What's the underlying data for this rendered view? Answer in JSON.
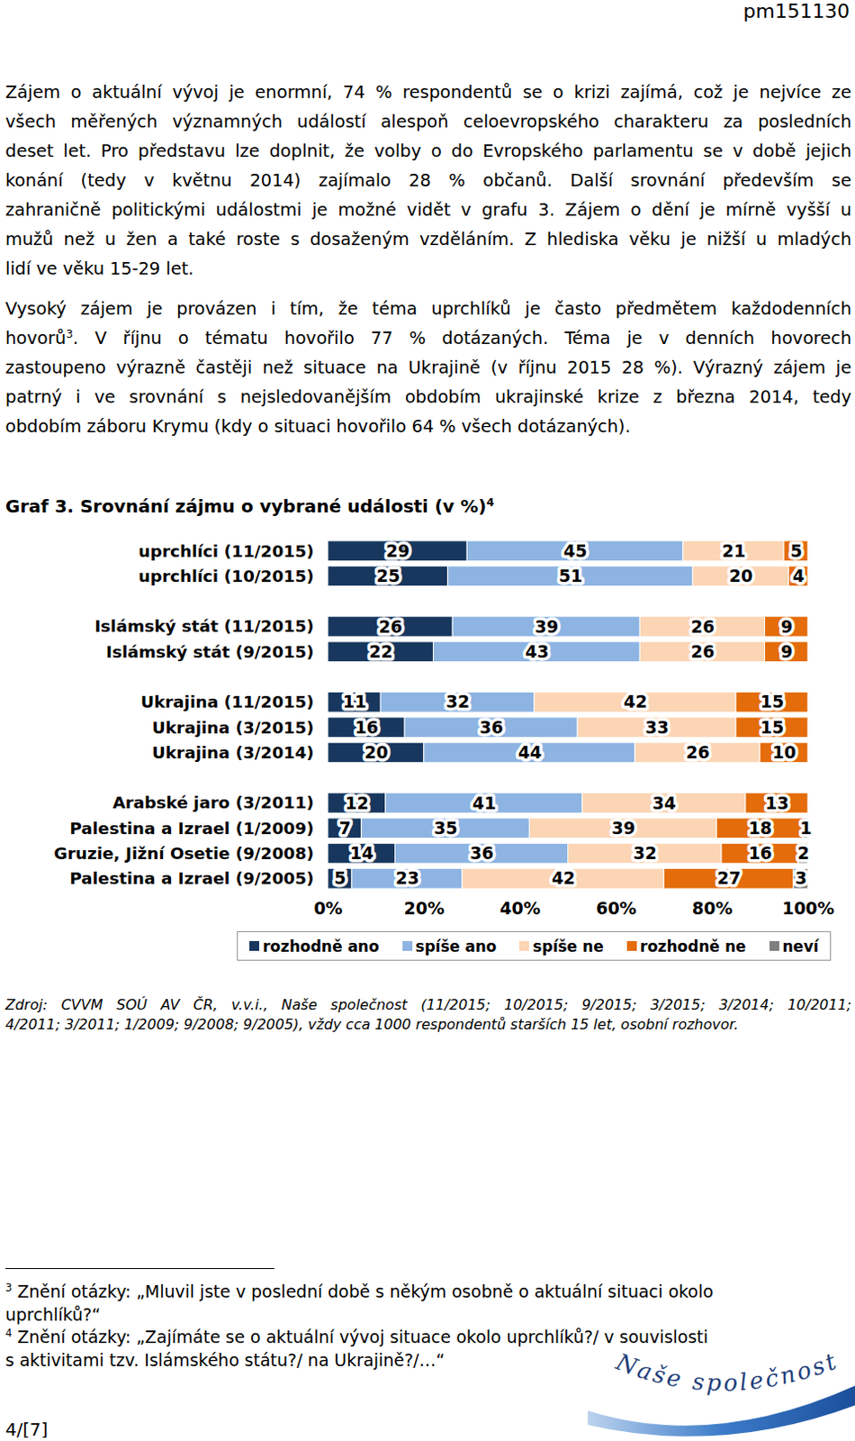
{
  "header": "pm151130",
  "paragraphs": [
    [
      "Zájem o aktuální vývoj je enormní, 74 % respondentů se o krizi zajímá, což je nejvíce ze",
      "všech měřených významných událostí alespoň celoevropského charakteru za posledních",
      "deset let. Pro představu lze doplnit, že volby o do Evropského parlamentu se v době jejich",
      "konání (tedy v květnu 2014) zajímalo 28 % občanů. Další srovnání především se",
      "zahraničně politickými událostmi je možné vidět v grafu 3. Zájem o dění je mírně vyšší u",
      "mužů než u žen a také roste s dosaženým vzděláním. Z hlediska věku je nižší u mladých",
      "lidí ve věku 15-29 let."
    ],
    [
      "Vysoký zájem je provázen i tím, že téma uprchlíků je často předmětem každodenních",
      [
        "hovorů",
        {
          "sup": "3"
        },
        ". V říjnu o tématu hovořilo 77 % dotázaných. Téma je v denních hovorech"
      ],
      "zastoupeno výrazně častěji než situace na Ukrajině (v říjnu 2015 28 %). Výrazný zájem je",
      "patrný i ve srovnání s nejsledovanějším obdobím ukrajinské krize z března 2014, tedy",
      "obdobím záboru Krymu (kdy o situaci hovořilo 64 % všech dotázaných)."
    ]
  ],
  "chart_data": {
    "type": "bar",
    "orientation": "horizontal",
    "stacked": true,
    "data_labels": true,
    "grid": false,
    "legend": "bottom",
    "title": "Graf 3. Srovnání zájmu o vybrané události (v %)",
    "title_footnote": "4",
    "categories": [
      "uprchlíci (11/2015)",
      "uprchlíci (10/2015)",
      "Islámský stát (11/2015)",
      "Islámský stát (9/2015)",
      "Ukrajina (11/2015)",
      "Ukrajina (3/2015)",
      "Ukrajina (3/2014)",
      "Arabské jaro (3/2011)",
      "Palestina a Izrael (1/2009)",
      "Gruzie, Jižní Osetie (9/2008)",
      "Palestina a Izrael (9/2005)"
    ],
    "series": [
      {
        "name": "rozhodně ano",
        "color": "#17375e",
        "values": [
          29,
          25,
          26,
          22,
          11,
          16,
          20,
          12,
          7,
          14,
          5
        ]
      },
      {
        "name": "spíše ano",
        "color": "#8db4e2",
        "values": [
          45,
          51,
          39,
          43,
          32,
          36,
          44,
          41,
          35,
          36,
          23
        ]
      },
      {
        "name": "spíše ne",
        "color": "#fcd5b4",
        "values": [
          21,
          20,
          26,
          26,
          42,
          33,
          26,
          34,
          39,
          32,
          42
        ]
      },
      {
        "name": "rozhodně ne",
        "color": "#e46c0a",
        "values": [
          5,
          4,
          9,
          9,
          15,
          15,
          10,
          13,
          18,
          16,
          27
        ]
      },
      {
        "name": "neví",
        "color": "#7f7f7f",
        "values": [
          0,
          0,
          0,
          0,
          0,
          0,
          0,
          0,
          1,
          2,
          3
        ]
      }
    ],
    "xlim": [
      0,
      100
    ],
    "xticks": [
      {
        "value": 0,
        "label": "0%"
      },
      {
        "value": 20,
        "label": "20%"
      },
      {
        "value": 40,
        "label": "40%"
      },
      {
        "value": 60,
        "label": "60%"
      },
      {
        "value": 80,
        "label": "80%"
      },
      {
        "value": 100,
        "label": "100%"
      }
    ]
  },
  "source": [
    "Zdroj: CVVM SOÚ AV ČR, v.v.i., Naše společnost (11/2015; 10/2015; 9/2015; 3/2015; 3/2014; 10/2011;",
    "4/2011; 3/2011; 1/2009; 9/2008; 9/2005), vždy cca 1000 respondentů starších 15 let, osobní rozhovor."
  ],
  "footnotes": [
    {
      "mark": "3",
      "lines": [
        "Znění otázky: „Mluvil jste v poslední době s někým osobně o aktuální situaci okolo",
        "uprchlíků?“"
      ]
    },
    {
      "mark": "4",
      "lines": [
        "Znění otázky: „Zajímáte se o aktuální vývoj situace okolo uprchlíků?/ v souvislosti",
        "s aktivitami tzv. Islámského státu?/ na Ukrajině?/…“"
      ]
    }
  ],
  "page_number": "4/[7]",
  "logo": "Naše společnost"
}
